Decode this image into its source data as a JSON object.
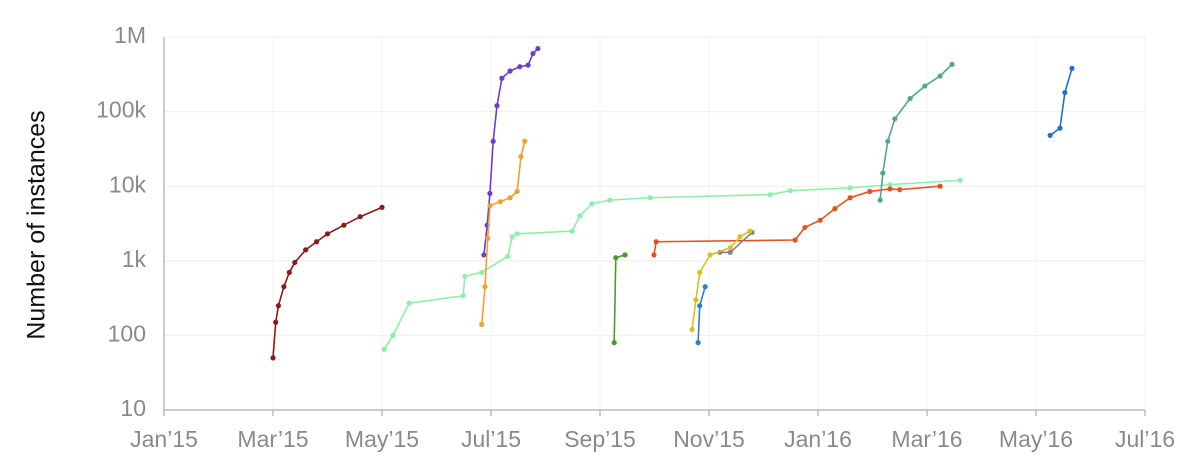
{
  "chart_data": {
    "type": "line",
    "log_y": true,
    "grid": true,
    "y_label": "Number of instances",
    "xlim": [
      0,
      18
    ],
    "xticks": [
      {
        "value": 0,
        "label": "Jan’15"
      },
      {
        "value": 2,
        "label": "Mar’15"
      },
      {
        "value": 4,
        "label": "May’15"
      },
      {
        "value": 6,
        "label": "Jul’15"
      },
      {
        "value": 8,
        "label": "Sep’15"
      },
      {
        "value": 10,
        "label": "Nov’15"
      },
      {
        "value": 12,
        "label": "Jan’16"
      },
      {
        "value": 14,
        "label": "Mar’16"
      },
      {
        "value": 16,
        "label": "May’16"
      },
      {
        "value": 18,
        "label": "Jul’16"
      }
    ],
    "ylim": [
      10,
      1000000
    ],
    "yticks": [
      10,
      100,
      {
        "value": 1000,
        "label": "1k"
      },
      {
        "value": 10000,
        "label": "10k"
      },
      {
        "value": 100000,
        "label": "100k"
      },
      {
        "value": 1000000,
        "label": "1M"
      }
    ],
    "series": [
      {
        "color": "#8b1a1a",
        "x": [
          2.0,
          2.05,
          2.1,
          2.2,
          2.3,
          2.4,
          2.6,
          2.8,
          3.0,
          3.3,
          3.6,
          4.0
        ],
        "values": [
          50,
          150,
          250,
          450,
          700,
          950,
          1400,
          1800,
          2300,
          3000,
          3900,
          5200
        ]
      },
      {
        "color": "#8ef0a8",
        "x": [
          4.04,
          4.2,
          4.5,
          5.49,
          5.52,
          5.83,
          6.31,
          6.39,
          6.48,
          7.49,
          7.63,
          7.85,
          8.18,
          8.92,
          11.12,
          11.49,
          12.59,
          13.32,
          14.61
        ],
        "values": [
          65,
          100,
          270,
          340,
          620,
          700,
          1150,
          2100,
          2300,
          2500,
          4000,
          5800,
          6500,
          7000,
          7700,
          8700,
          9500,
          10500,
          12000
        ]
      },
      {
        "color": "#6a3fd0",
        "x": [
          5.87,
          5.93,
          5.98,
          6.04,
          6.11,
          6.2,
          6.35,
          6.53,
          6.68,
          6.77,
          6.86
        ],
        "values": [
          1200,
          3000,
          8000,
          40000,
          120000,
          280000,
          350000,
          400000,
          420000,
          600000,
          700000
        ]
      },
      {
        "color": "#f0a030",
        "x": [
          5.83,
          5.89,
          5.94,
          5.98,
          6.17,
          6.35,
          6.48,
          6.55,
          6.62
        ],
        "values": [
          140,
          450,
          2000,
          5500,
          6200,
          7000,
          8500,
          25000,
          40000
        ]
      },
      {
        "color": "#4a9a30",
        "x": [
          8.26,
          8.29,
          8.46
        ],
        "values": [
          80,
          1100,
          1200
        ]
      },
      {
        "color": "#e85020",
        "x": [
          8.99,
          9.03,
          11.58,
          11.76,
          12.04,
          12.31,
          12.59,
          12.95,
          13.32,
          13.5,
          14.24
        ],
        "values": [
          1200,
          1800,
          1900,
          2800,
          3500,
          5000,
          7000,
          8500,
          9200,
          9000,
          10000
        ]
      },
      {
        "color": "#50a890",
        "x": [
          13.14,
          13.19,
          13.28,
          13.41,
          13.69,
          13.96,
          14.24,
          14.46
        ],
        "values": [
          6500,
          15000,
          40000,
          80000,
          150000,
          220000,
          300000,
          430000
        ]
      },
      {
        "color": "#8a7a9a",
        "x": [
          10.2,
          10.39,
          10.79
        ],
        "values": [
          1300,
          1300,
          2400
        ]
      },
      {
        "color": "#d8c020",
        "x": [
          9.69,
          9.76,
          9.83,
          10.02,
          10.39,
          10.57,
          10.75
        ],
        "values": [
          120,
          300,
          700,
          1200,
          1500,
          2100,
          2500
        ]
      },
      {
        "color": "#3080c0",
        "x": [
          9.8,
          9.83,
          9.93
        ],
        "values": [
          80,
          250,
          450
        ]
      },
      {
        "color": "#2070d0",
        "x": [
          16.26,
          16.44,
          16.53,
          16.66
        ],
        "values": [
          48000,
          60000,
          180000,
          380000
        ]
      }
    ]
  }
}
